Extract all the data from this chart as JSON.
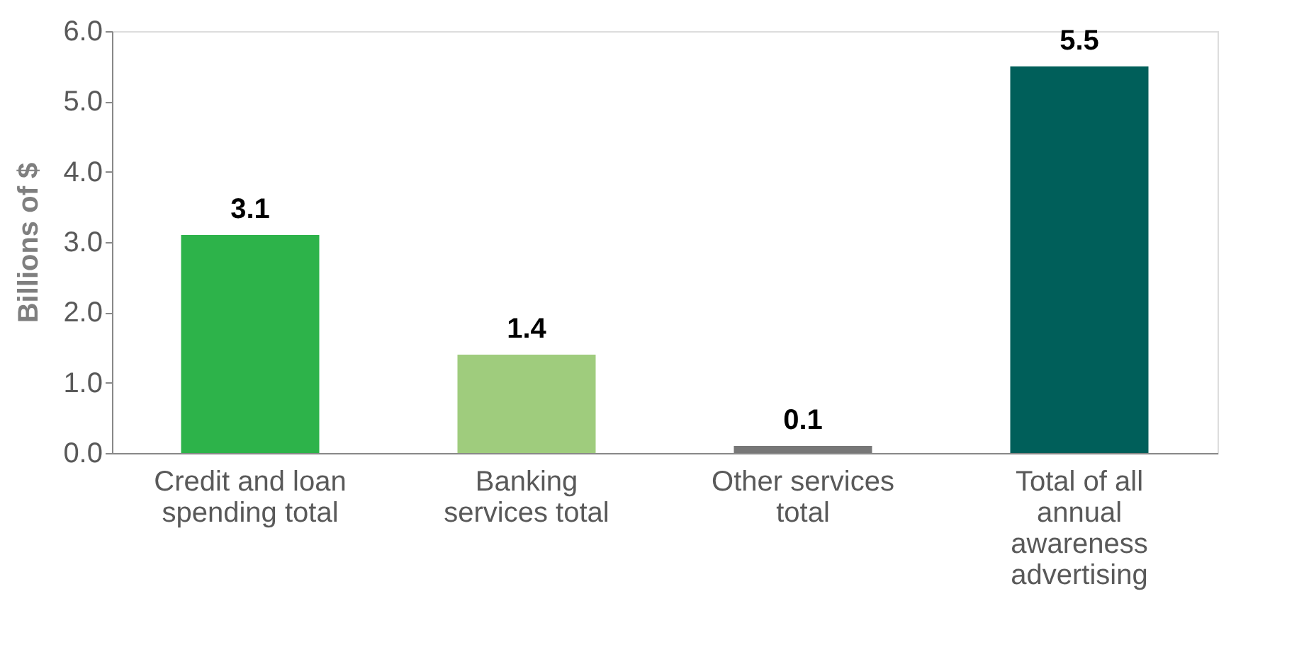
{
  "chart_data": {
    "type": "bar",
    "ylabel": "Billions of $",
    "categories": [
      "Credit and loan spending total",
      "Banking services total",
      "Other services total",
      "Total of all annual awareness advertising"
    ],
    "values": [
      3.1,
      1.4,
      0.1,
      5.5
    ],
    "colors": [
      "#2db34a",
      "#9fcc7d",
      "#777777",
      "#005f5a"
    ],
    "ylim": [
      0,
      6
    ],
    "yticks": [
      {
        "value": 0,
        "label": "0.0"
      },
      {
        "value": 1,
        "label": "1.0"
      },
      {
        "value": 2,
        "label": "2.0"
      },
      {
        "value": 3,
        "label": "3.0"
      },
      {
        "value": 4,
        "label": "4.0"
      },
      {
        "value": 5,
        "label": "5.0"
      },
      {
        "value": 6,
        "label": "6.0"
      }
    ],
    "data_labels": true,
    "grid": false,
    "legend": false
  }
}
